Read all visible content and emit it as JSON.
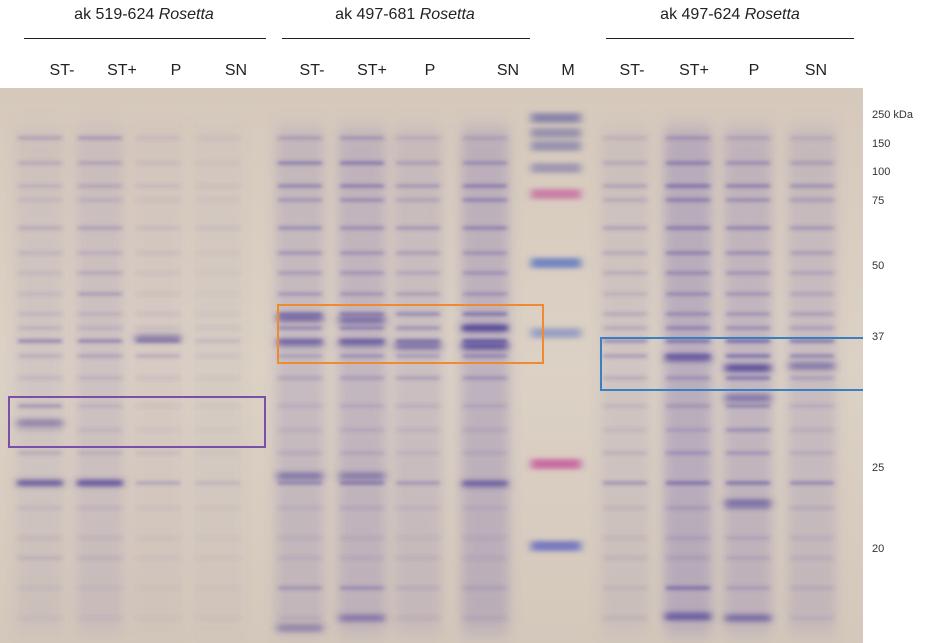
{
  "groups": [
    {
      "prefix": "ak 519-624 ",
      "strain": "Rosetta"
    },
    {
      "prefix": "ak 497-681 ",
      "strain": "Rosetta"
    },
    {
      "prefix": "ak 497-624 ",
      "strain": "Rosetta"
    }
  ],
  "lanes": [
    "ST-",
    "ST+",
    "P",
    "SN",
    "ST-",
    "ST+",
    "P",
    "SN",
    "M",
    "ST-",
    "ST+",
    "P",
    "SN"
  ],
  "marker_labels": [
    "250 kDa",
    "150",
    "100",
    "75",
    "50",
    "37",
    "25",
    "20"
  ],
  "highlight_colors": {
    "purple": "#7b4fa8",
    "orange": "#f08a30",
    "blue": "#3a7fc0"
  },
  "colors": {
    "gel_background": "#d8ccbf",
    "band": "#6a5ca8",
    "marker_pink": "#c2549a",
    "marker_blue": "#4f6ec0"
  }
}
